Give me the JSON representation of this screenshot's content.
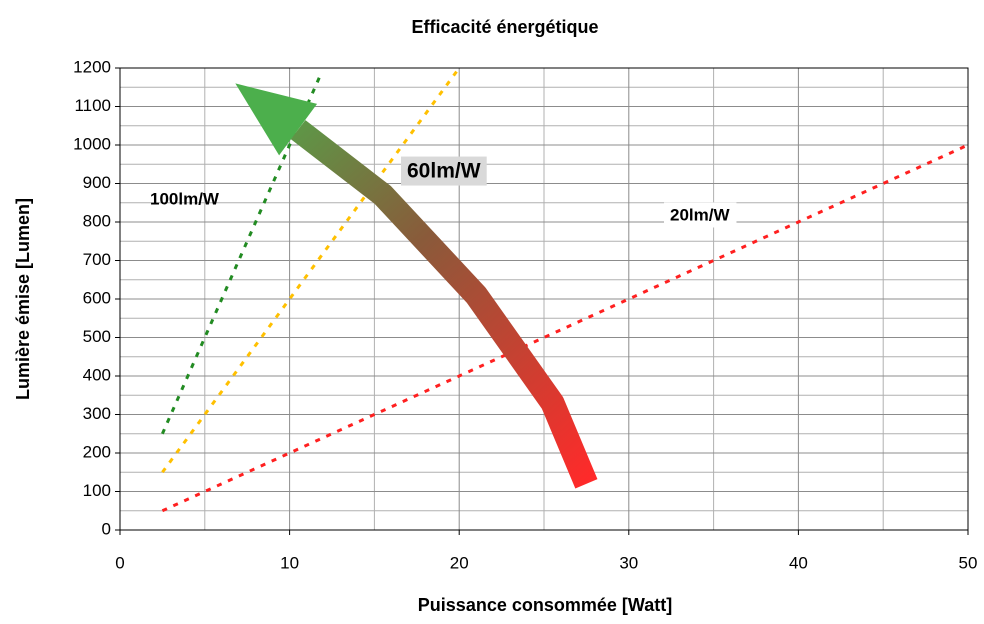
{
  "chart_data": {
    "type": "line",
    "title": "Efficacité énergétique",
    "x_label": "Puissance consommée [Watt]",
    "y_label": "Lumière émise [Lumen]",
    "xlim": [
      0,
      50
    ],
    "xticks": [
      0,
      10,
      20,
      30,
      40,
      50
    ],
    "xminorticks": [
      5,
      15,
      25,
      35,
      45
    ],
    "ylim": [
      0,
      1200
    ],
    "yticks": [
      0,
      100,
      200,
      300,
      400,
      500,
      600,
      700,
      800,
      900,
      1000,
      1100,
      1200
    ],
    "yminorticks": [
      50,
      150,
      250,
      350,
      450,
      550,
      650,
      750,
      850,
      950,
      1050,
      1150
    ],
    "grid": true,
    "series": [
      {
        "name": "100lm/W",
        "color": "#228b22",
        "x": [
          2.5,
          11.8
        ],
        "values": [
          250,
          1180
        ]
      },
      {
        "name": "60lm/W",
        "color": "#ffc000",
        "x": [
          2.5,
          20
        ],
        "values": [
          150,
          1200
        ]
      },
      {
        "name": "20lm/W",
        "color": "#ff2020",
        "x": [
          2.5,
          50
        ],
        "values": [
          50,
          1000
        ]
      }
    ],
    "arrow": {
      "x": [
        27.5,
        25.5,
        21,
        15.5,
        10.5,
        6.8
      ],
      "y": [
        120,
        330,
        610,
        870,
        1040,
        1160
      ]
    }
  }
}
